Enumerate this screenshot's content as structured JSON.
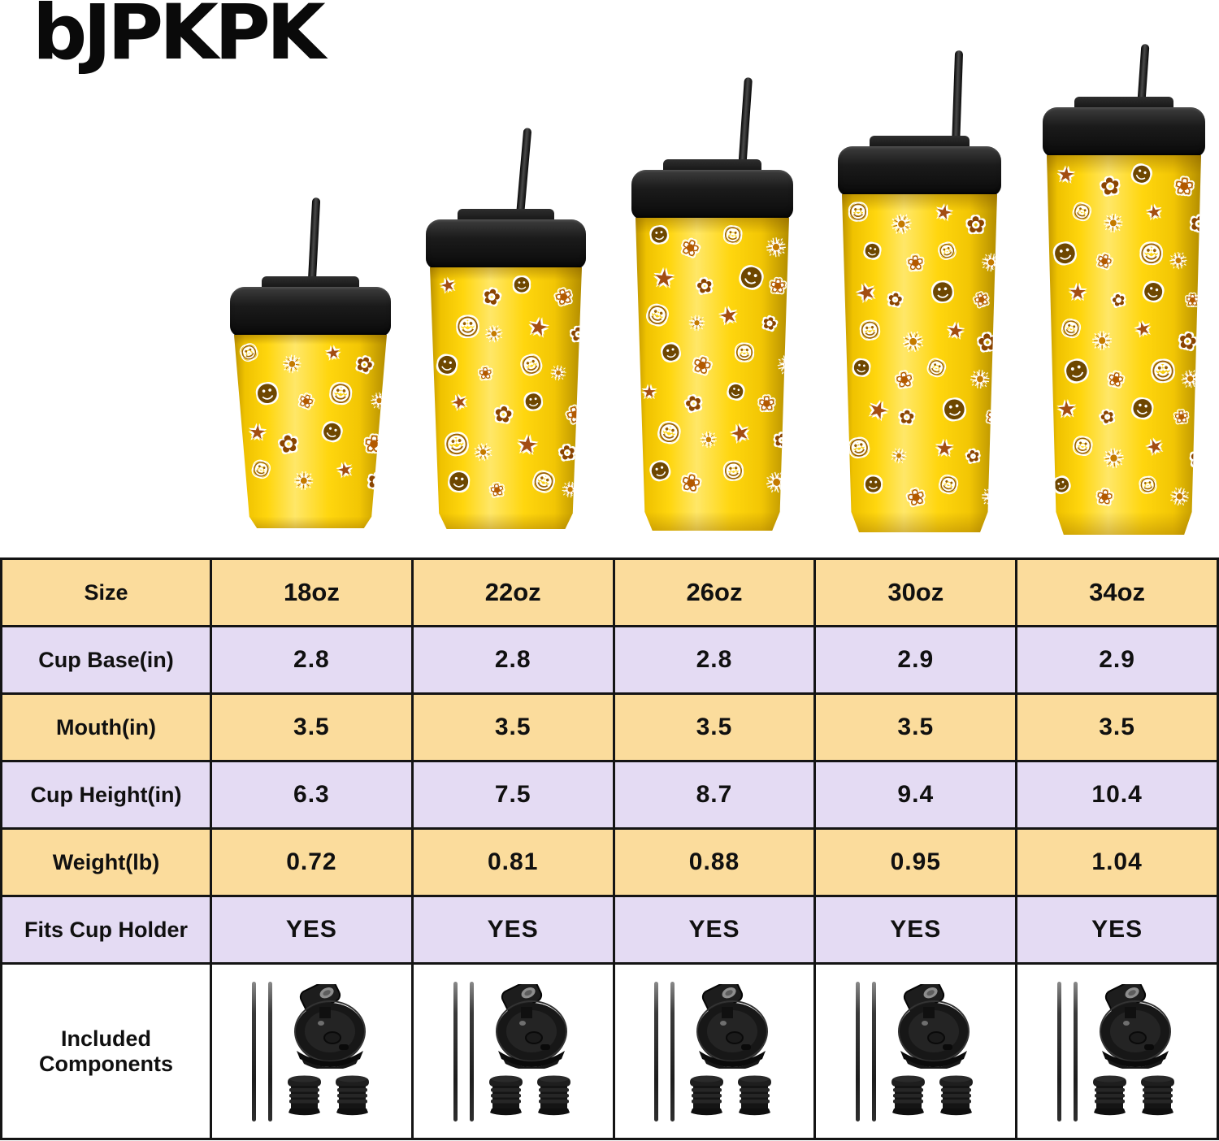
{
  "brand": {
    "logo_text": "bJPKPK"
  },
  "product": {
    "description": "Five insulated yellow tumblers with cartoon lemon and sun sticker pattern, black flip lids and black straws, arranged smallest to largest",
    "sizes": [
      "18oz",
      "22oz",
      "26oz",
      "30oz",
      "34oz"
    ],
    "sticker_glyphs": [
      {
        "glyph": "☺",
        "color": "#9a5f00"
      },
      {
        "glyph": "☀",
        "color": "#c47a00"
      },
      {
        "glyph": "★",
        "color": "#a34d12"
      },
      {
        "glyph": "✿",
        "color": "#8a4400"
      },
      {
        "glyph": "☻",
        "color": "#6e4700"
      },
      {
        "glyph": "❀",
        "color": "#b35900"
      }
    ],
    "colors": {
      "cup_yellow": "#ffd60e",
      "lid_black": "#1b1b1b"
    }
  },
  "chart_data": {
    "type": "table",
    "columns": [
      "Size",
      "18oz",
      "22oz",
      "26oz",
      "30oz",
      "34oz"
    ],
    "rows": [
      {
        "label": "Cup Base(in)",
        "values": [
          "2.8",
          "2.8",
          "2.8",
          "2.9",
          "2.9"
        ]
      },
      {
        "label": "Mouth(in)",
        "values": [
          "3.5",
          "3.5",
          "3.5",
          "3.5",
          "3.5"
        ]
      },
      {
        "label": "Cup Height(in)",
        "values": [
          "6.3",
          "7.5",
          "8.7",
          "9.4",
          "10.4"
        ]
      },
      {
        "label": "Weight(lb)",
        "values": [
          "0.72",
          "0.81",
          "0.88",
          "0.95",
          "1.04"
        ]
      },
      {
        "label": "Fits Cup Holder",
        "values": [
          "YES",
          "YES",
          "YES",
          "YES",
          "YES"
        ]
      },
      {
        "label": "Included Components",
        "type": "components",
        "components": [
          "2 metal straws",
          "flip-top lid",
          "2 straw stoppers"
        ]
      }
    ],
    "style": {
      "row_yellow": "#fbdc9c",
      "row_lavender": "#e4dbf3",
      "row_white": "#ffffff",
      "border_color": "#141414",
      "legend_position": "none",
      "grid": true
    }
  }
}
